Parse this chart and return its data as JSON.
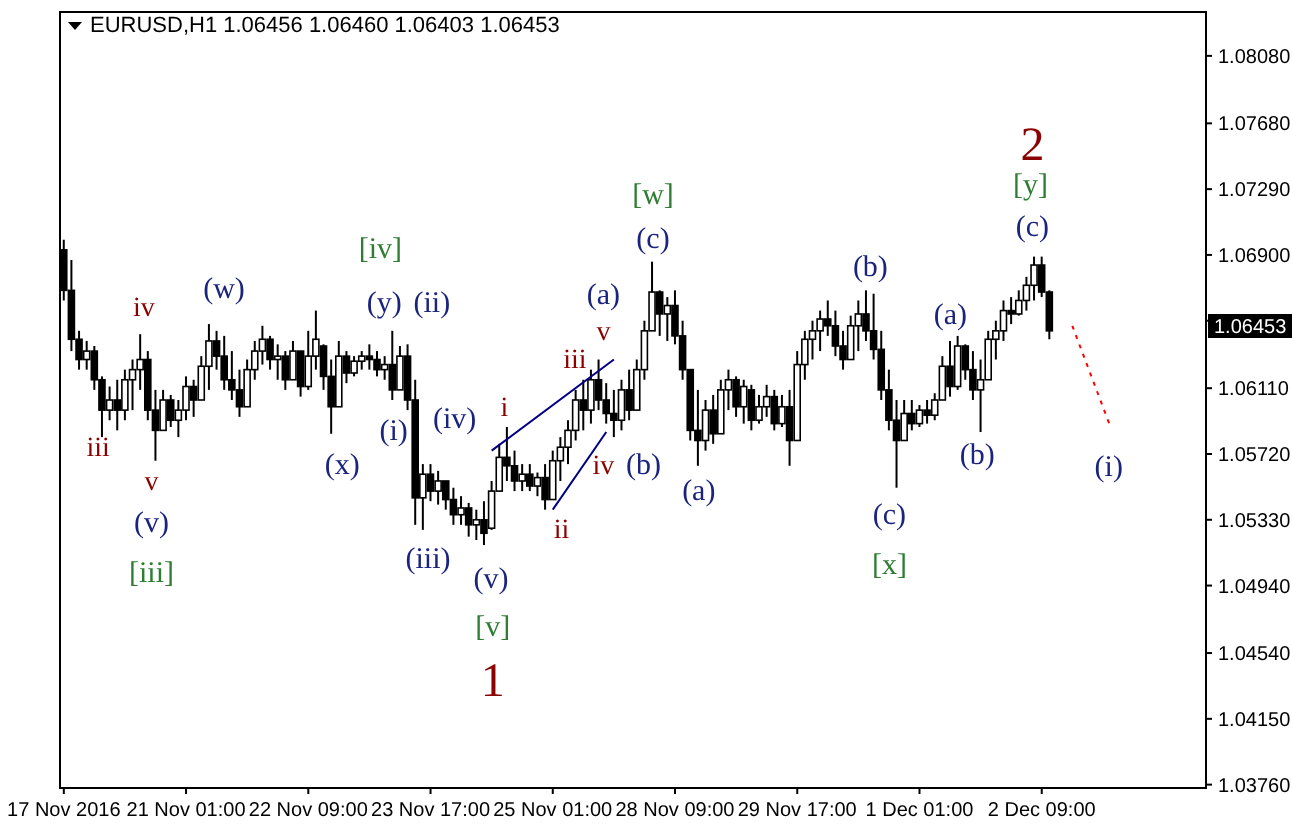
{
  "chart_data": {
    "type": "candlestick",
    "title": "EURUSD,H1 1.06456 1.06460 1.06403 1.06453",
    "color": "#000000",
    "categories": [
      "17 Nov 2016",
      null,
      null,
      null,
      null,
      null,
      null,
      null,
      null,
      null,
      null,
      null,
      null,
      null,
      null,
      null,
      "21 Nov 01:00",
      null,
      null,
      null,
      null,
      null,
      null,
      null,
      null,
      null,
      null,
      null,
      null,
      null,
      null,
      null,
      "22 Nov 09:00",
      null,
      null,
      null,
      null,
      null,
      null,
      null,
      null,
      null,
      null,
      null,
      null,
      null,
      null,
      null,
      "23 Nov 17:00",
      null,
      null,
      null,
      null,
      null,
      null,
      null,
      null,
      null,
      null,
      null,
      null,
      null,
      null,
      null,
      "25 Nov 01:00",
      null,
      null,
      null,
      null,
      null,
      null,
      null,
      null,
      null,
      null,
      null,
      null,
      null,
      null,
      null,
      "28 Nov 09:00",
      null,
      null,
      null,
      null,
      null,
      null,
      null,
      null,
      null,
      null,
      null,
      null,
      null,
      null,
      null,
      "29 Nov 17:00",
      null,
      null,
      null,
      null,
      null,
      null,
      null,
      null,
      null,
      null,
      null,
      null,
      null,
      null,
      null,
      "1 Dec 01:00",
      null,
      null,
      null,
      null,
      null,
      null,
      null,
      null,
      null,
      null,
      null,
      null,
      null,
      null,
      null,
      "2 Dec 09:00",
      null,
      null,
      null,
      null,
      null,
      null,
      null,
      null,
      null,
      null,
      null,
      null,
      null,
      null,
      null,
      null,
      null,
      null,
      null,
      null,
      null
    ],
    "ohlc": [
      [
        1.0693,
        1.0699,
        1.0663,
        1.0669
      ],
      [
        1.0669,
        1.0687,
        1.0633,
        1.064
      ],
      [
        1.064,
        1.0645,
        1.0622,
        1.0628
      ],
      [
        1.0628,
        1.0639,
        1.0622,
        1.0633
      ],
      [
        1.0633,
        1.0636,
        1.061,
        1.0616
      ],
      [
        1.0616,
        1.0618,
        1.0582,
        1.0598
      ],
      [
        1.0598,
        1.0612,
        1.0592,
        1.0604
      ],
      [
        1.0604,
        1.0616,
        1.0586,
        1.0598
      ],
      [
        1.0598,
        1.0622,
        1.0592,
        1.0616
      ],
      [
        1.0616,
        1.0628,
        1.0598,
        1.0622
      ],
      [
        1.0622,
        1.0643,
        1.061,
        1.0628
      ],
      [
        1.0628,
        1.0633,
        1.0592,
        1.0598
      ],
      [
        1.0598,
        1.061,
        1.0568,
        1.0586
      ],
      [
        1.0586,
        1.061,
        1.0586,
        1.0604
      ],
      [
        1.0604,
        1.0607,
        1.0588,
        1.0592
      ],
      [
        1.0592,
        1.0604,
        1.0582,
        1.0598
      ],
      [
        1.0598,
        1.0618,
        1.0592,
        1.0612
      ],
      [
        1.0612,
        1.0616,
        1.0594,
        1.0604
      ],
      [
        1.0604,
        1.063,
        1.0604,
        1.0624
      ],
      [
        1.0624,
        1.0649,
        1.061,
        1.0639
      ],
      [
        1.0639,
        1.0645,
        1.0622,
        1.063
      ],
      [
        1.063,
        1.0642,
        1.061,
        1.0616
      ],
      [
        1.0616,
        1.0633,
        1.0604,
        1.061
      ],
      [
        1.061,
        1.0622,
        1.0594,
        1.06
      ],
      [
        1.06,
        1.0628,
        1.06,
        1.0622
      ],
      [
        1.0622,
        1.0639,
        1.0616,
        1.0633
      ],
      [
        1.0633,
        1.0648,
        1.0625,
        1.064
      ],
      [
        1.064,
        1.0642,
        1.0622,
        1.0628
      ],
      [
        1.0628,
        1.0637,
        1.0616,
        1.063
      ],
      [
        1.063,
        1.0633,
        1.061,
        1.0616
      ],
      [
        1.0616,
        1.0639,
        1.0616,
        1.0633
      ],
      [
        1.0633,
        1.0633,
        1.0606,
        1.0612
      ],
      [
        1.0612,
        1.0645,
        1.061,
        1.063
      ],
      [
        1.063,
        1.0657,
        1.0622,
        1.064
      ],
      [
        1.0636,
        1.0637,
        1.061,
        1.0618
      ],
      [
        1.0618,
        1.0628,
        1.0584,
        1.06
      ],
      [
        1.06,
        1.0639,
        1.06,
        1.063
      ],
      [
        1.063,
        1.0633,
        1.0614,
        1.062
      ],
      [
        1.062,
        1.063,
        1.0618,
        1.0627
      ],
      [
        1.0627,
        1.0633,
        1.0622,
        1.063
      ],
      [
        1.063,
        1.0637,
        1.0622,
        1.0628
      ],
      [
        1.0628,
        1.0633,
        1.0618,
        1.0622
      ],
      [
        1.0622,
        1.063,
        1.0616,
        1.0625
      ],
      [
        1.0625,
        1.0645,
        1.0604,
        1.061
      ],
      [
        1.061,
        1.0636,
        1.061,
        1.063
      ],
      [
        1.063,
        1.0637,
        1.0598,
        1.0604
      ],
      [
        1.0604,
        1.0616,
        1.053,
        1.0546
      ],
      [
        1.0546,
        1.0566,
        1.0527,
        1.056
      ],
      [
        1.056,
        1.0566,
        1.0544,
        1.055
      ],
      [
        1.055,
        1.0562,
        1.0542,
        1.0556
      ],
      [
        1.0556,
        1.0556,
        1.0539,
        1.0545
      ],
      [
        1.0545,
        1.0552,
        1.053,
        1.0536
      ],
      [
        1.0536,
        1.0547,
        1.053,
        1.054
      ],
      [
        1.054,
        1.0543,
        1.0523,
        1.053
      ],
      [
        1.053,
        1.0539,
        1.0521,
        1.0533
      ],
      [
        1.0533,
        1.0544,
        1.0518,
        1.0525
      ],
      [
        1.0528,
        1.0556,
        1.0527,
        1.055
      ],
      [
        1.055,
        1.0578,
        1.055,
        1.057
      ],
      [
        1.057,
        1.0588,
        1.0556,
        1.0565
      ],
      [
        1.0565,
        1.0574,
        1.055,
        1.0556
      ],
      [
        1.0556,
        1.0566,
        1.055,
        1.056
      ],
      [
        1.056,
        1.0566,
        1.055,
        1.0553
      ],
      [
        1.0553,
        1.0561,
        1.0547,
        1.0558
      ],
      [
        1.0558,
        1.0566,
        1.0539,
        1.0545
      ],
      [
        1.0545,
        1.0574,
        1.0545,
        1.0568
      ],
      [
        1.0568,
        1.0582,
        1.0556,
        1.0576
      ],
      [
        1.0576,
        1.0592,
        1.0566,
        1.0586
      ],
      [
        1.0586,
        1.061,
        1.058,
        1.0604
      ],
      [
        1.0604,
        1.0616,
        1.0586,
        1.0598
      ],
      [
        1.0598,
        1.0622,
        1.059,
        1.0616
      ],
      [
        1.0616,
        1.0628,
        1.0598,
        1.0604
      ],
      [
        1.0604,
        1.0614,
        1.059,
        1.0596
      ],
      [
        1.0596,
        1.061,
        1.0582,
        1.0592
      ],
      [
        1.0592,
        1.0616,
        1.0586,
        1.061
      ],
      [
        1.061,
        1.0622,
        1.0592,
        1.0598
      ],
      [
        1.0598,
        1.0628,
        1.0598,
        1.0622
      ],
      [
        1.0622,
        1.0651,
        1.0616,
        1.0645
      ],
      [
        1.0645,
        1.0686,
        1.0645,
        1.0668
      ],
      [
        1.0668,
        1.0669,
        1.0642,
        1.0655
      ],
      [
        1.0655,
        1.0665,
        1.0639,
        1.066
      ],
      [
        1.066,
        1.0669,
        1.0637,
        1.0642
      ],
      [
        1.0642,
        1.0651,
        1.0616,
        1.0622
      ],
      [
        1.0622,
        1.0622,
        1.058,
        1.0586
      ],
      [
        1.0586,
        1.061,
        1.0565,
        1.058
      ],
      [
        1.058,
        1.0604,
        1.0574,
        1.0598
      ],
      [
        1.0598,
        1.0607,
        1.0578,
        1.0584
      ],
      [
        1.0584,
        1.0616,
        1.0584,
        1.061
      ],
      [
        1.061,
        1.0622,
        1.0598,
        1.0616
      ],
      [
        1.0616,
        1.0618,
        1.0594,
        1.06
      ],
      [
        1.06,
        1.0616,
        1.059,
        1.0612
      ],
      [
        1.061,
        1.0613,
        1.0586,
        1.0592
      ],
      [
        1.0592,
        1.0607,
        1.059,
        1.06
      ],
      [
        1.06,
        1.0613,
        1.0594,
        1.0606
      ],
      [
        1.0606,
        1.061,
        1.0586,
        1.059
      ],
      [
        1.059,
        1.0607,
        1.0588,
        1.06
      ],
      [
        1.06,
        1.061,
        1.0565,
        1.058
      ],
      [
        1.058,
        1.0633,
        1.058,
        1.0625
      ],
      [
        1.0625,
        1.0645,
        1.0616,
        1.064
      ],
      [
        1.064,
        1.0651,
        1.0628,
        1.0645
      ],
      [
        1.0645,
        1.0657,
        1.0633,
        1.0652
      ],
      [
        1.0652,
        1.0663,
        1.0642,
        1.0648
      ],
      [
        1.0648,
        1.0657,
        1.063,
        1.0636
      ],
      [
        1.0636,
        1.0645,
        1.0622,
        1.0628
      ],
      [
        1.0628,
        1.0654,
        1.0628,
        1.0648
      ],
      [
        1.0648,
        1.0663,
        1.0633,
        1.0655
      ],
      [
        1.0655,
        1.0669,
        1.0639,
        1.0645
      ],
      [
        1.0645,
        1.0667,
        1.0628,
        1.0634
      ],
      [
        1.0634,
        1.0645,
        1.0604,
        1.061
      ],
      [
        1.061,
        1.0622,
        1.0586,
        1.0592
      ],
      [
        1.0592,
        1.0604,
        1.0552,
        1.058
      ],
      [
        1.058,
        1.0604,
        1.058,
        1.0596
      ],
      [
        1.0596,
        1.0604,
        1.0586,
        1.059
      ],
      [
        1.059,
        1.0601,
        1.0588,
        1.0598
      ],
      [
        1.0598,
        1.0604,
        1.059,
        1.0595
      ],
      [
        1.0595,
        1.0608,
        1.0592,
        1.0604
      ],
      [
        1.0604,
        1.063,
        1.0604,
        1.0624
      ],
      [
        1.0624,
        1.0639,
        1.0606,
        1.0612
      ],
      [
        1.0612,
        1.0642,
        1.061,
        1.0636
      ],
      [
        1.0636,
        1.0637,
        1.0616,
        1.0622
      ],
      [
        1.0622,
        1.0633,
        1.0604,
        1.061
      ],
      [
        1.061,
        1.0628,
        1.0585,
        1.0616
      ],
      [
        1.0616,
        1.0645,
        1.0616,
        1.064
      ],
      [
        1.064,
        1.0651,
        1.0628,
        1.0645
      ],
      [
        1.0645,
        1.0663,
        1.0639,
        1.0657
      ],
      [
        1.0657,
        1.0665,
        1.0649,
        1.0655
      ],
      [
        1.0655,
        1.0669,
        1.0654,
        1.0663
      ],
      [
        1.0663,
        1.0677,
        1.0657,
        1.0672
      ],
      [
        1.0672,
        1.0689,
        1.0663,
        1.0684
      ],
      [
        1.0684,
        1.0689,
        1.0665,
        1.0668
      ],
      [
        1.0668,
        1.0669,
        1.064,
        1.0645
      ],
      null,
      null,
      null,
      null,
      null,
      null,
      null,
      null,
      null,
      null,
      null,
      null,
      null,
      null,
      null,
      null,
      null,
      null,
      null,
      null
    ],
    "series": [
      {
        "type": "line",
        "color": "#000080",
        "line_style": "solid",
        "values": [
          null,
          null,
          null,
          null,
          null,
          null,
          null,
          null,
          null,
          null,
          null,
          null,
          null,
          null,
          null,
          null,
          null,
          null,
          null,
          null,
          null,
          null,
          null,
          null,
          null,
          null,
          null,
          null,
          null,
          null,
          null,
          null,
          null,
          null,
          null,
          null,
          null,
          null,
          null,
          null,
          null,
          null,
          null,
          null,
          null,
          null,
          null,
          null,
          null,
          null,
          null,
          null,
          null,
          null,
          null,
          null,
          1.0574,
          null,
          null,
          null,
          null,
          null,
          null,
          null,
          null,
          null,
          null,
          null,
          null,
          null,
          null,
          null,
          1.0628,
          null,
          null,
          null,
          null,
          null,
          null,
          null,
          null,
          null,
          null,
          null,
          null,
          null,
          null,
          null,
          null,
          null,
          null,
          null,
          null,
          null,
          null,
          null,
          null,
          null,
          null,
          null,
          null,
          null,
          null,
          null,
          null,
          null,
          null,
          null,
          null,
          null,
          null,
          null,
          null,
          null,
          null,
          null,
          null,
          null,
          null,
          null,
          null,
          null,
          null,
          null,
          null,
          null,
          null,
          null,
          null,
          null,
          null,
          null,
          null,
          null,
          null,
          null,
          null,
          null,
          null,
          null,
          null,
          null,
          null,
          null,
          null,
          null,
          null,
          null,
          null,
          null
        ]
      },
      {
        "type": "line",
        "color": "#000080",
        "line_style": "solid",
        "values": [
          null,
          null,
          null,
          null,
          null,
          null,
          null,
          null,
          null,
          null,
          null,
          null,
          null,
          null,
          null,
          null,
          null,
          null,
          null,
          null,
          null,
          null,
          null,
          null,
          null,
          null,
          null,
          null,
          null,
          null,
          null,
          null,
          null,
          null,
          null,
          null,
          null,
          null,
          null,
          null,
          null,
          null,
          null,
          null,
          null,
          null,
          null,
          null,
          null,
          null,
          null,
          null,
          null,
          null,
          null,
          null,
          null,
          null,
          null,
          null,
          null,
          null,
          null,
          null,
          1.0539,
          null,
          null,
          null,
          null,
          null,
          null,
          1.0585,
          null,
          null,
          null,
          null,
          null,
          null,
          null,
          null,
          null,
          null,
          null,
          null,
          null,
          null,
          null,
          null,
          null,
          null,
          null,
          null,
          null,
          null,
          null,
          null,
          null,
          null,
          null,
          null,
          null,
          null,
          null,
          null,
          null,
          null,
          null,
          null,
          null,
          null,
          null,
          null,
          null,
          null,
          null,
          null,
          null,
          null,
          null,
          null,
          null,
          null,
          null,
          null,
          null,
          null,
          null,
          null,
          null,
          null,
          null,
          null,
          null,
          null,
          null,
          null,
          null,
          null,
          null,
          null,
          null,
          null,
          null,
          null,
          null,
          null,
          null,
          null,
          null,
          null
        ]
      },
      {
        "type": "line",
        "color": "#ff0000",
        "line_style": "dotted",
        "values": [
          null,
          null,
          null,
          null,
          null,
          null,
          null,
          null,
          null,
          null,
          null,
          null,
          null,
          null,
          null,
          null,
          null,
          null,
          null,
          null,
          null,
          null,
          null,
          null,
          null,
          null,
          null,
          null,
          null,
          null,
          null,
          null,
          null,
          null,
          null,
          null,
          null,
          null,
          null,
          null,
          null,
          null,
          null,
          null,
          null,
          null,
          null,
          null,
          null,
          null,
          null,
          null,
          null,
          null,
          null,
          null,
          null,
          null,
          null,
          null,
          null,
          null,
          null,
          null,
          null,
          null,
          null,
          null,
          null,
          null,
          null,
          null,
          null,
          null,
          null,
          null,
          null,
          null,
          null,
          null,
          null,
          null,
          null,
          null,
          null,
          null,
          null,
          null,
          null,
          null,
          null,
          null,
          null,
          null,
          null,
          null,
          null,
          null,
          null,
          null,
          null,
          null,
          null,
          null,
          null,
          null,
          null,
          null,
          null,
          null,
          null,
          null,
          null,
          null,
          null,
          null,
          null,
          null,
          null,
          null,
          null,
          null,
          null,
          null,
          null,
          null,
          null,
          null,
          null,
          null,
          null,
          null,
          1.0648,
          null,
          null,
          null,
          null,
          1.0588,
          null,
          null,
          null,
          null,
          null,
          null,
          null,
          null,
          null,
          null,
          null,
          null
        ]
      }
    ],
    "ylim": [
      1.0374,
      1.0834
    ],
    "yticks": [
      {
        "value": 1.0808,
        "label": "1.08080"
      },
      {
        "value": 1.0768,
        "label": "1.07680"
      },
      {
        "value": 1.0729,
        "label": "1.07290"
      },
      {
        "value": 1.069,
        "label": "1.06900"
      },
      {
        "value": 1.0651,
        "label": null
      },
      {
        "value": 1.0611,
        "label": "1.06110"
      },
      {
        "value": 1.0572,
        "label": "1.05720"
      },
      {
        "value": 1.0533,
        "label": "1.05330"
      },
      {
        "value": 1.0494,
        "label": "1.04940"
      },
      {
        "value": 1.0454,
        "label": "1.04540"
      },
      {
        "value": 1.0415,
        "label": "1.04150"
      },
      {
        "value": 1.0376,
        "label": "1.03760"
      }
    ],
    "annotations": [
      "iii",
      "iv",
      "v",
      "(v)",
      "[iii]",
      "(w)",
      "(x)",
      "[iv]",
      "(y)",
      "(ii)",
      "(i)",
      "(iv)",
      "(iii)",
      "(v)",
      "[v]",
      "1",
      "i",
      "iii",
      "v",
      "(a)",
      "ii",
      "iv",
      "(b)",
      "[w]",
      "(c)",
      "(a)",
      "(b)",
      "(c)",
      "[x]",
      "(a)",
      "(b)",
      "2",
      "[y]",
      "(c)",
      "(i)",
      "1.06453"
    ]
  }
}
